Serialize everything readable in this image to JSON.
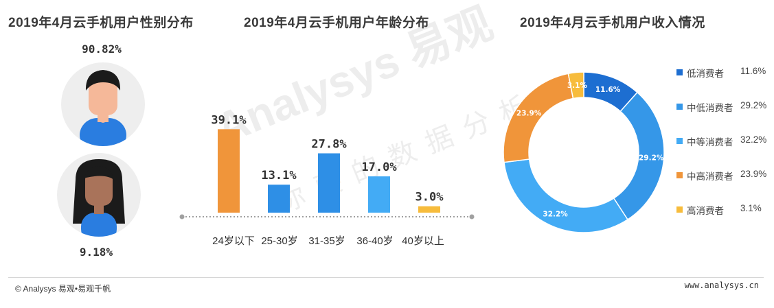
{
  "watermark": {
    "brand": "Analysys 易观",
    "slogan": "你要的数据分析"
  },
  "gender": {
    "title": "2019年4月云手机用户性别分布",
    "male_pct": "90.82%",
    "female_pct": "9.18%"
  },
  "age": {
    "title": "2019年4月云手机用户年龄分布"
  },
  "income": {
    "title": "2019年4月云手机用户收入情况"
  },
  "footer": {
    "copyright": "© Analysys 易观•易观千帆",
    "url": "www.analysys.cn"
  },
  "colors": {
    "orange": "#f0953a",
    "blue": "#2e8fe6",
    "dark_blue": "#1d6ed1",
    "mid_blue": "#3597e8",
    "light_blue": "#43abf5",
    "yellow": "#f7bc3c"
  },
  "chart_data": [
    {
      "type": "bar",
      "title": "2019年4月云手机用户年龄分布",
      "categories": [
        "24岁以下",
        "25-30岁",
        "31-35岁",
        "36-40岁",
        "40岁以上"
      ],
      "values": [
        39.1,
        13.1,
        27.8,
        17.0,
        3.0
      ],
      "labels": [
        "39.1%",
        "13.1%",
        "27.8%",
        "17.0%",
        "3.0%"
      ],
      "colors": [
        "#f0953a",
        "#2e8fe6",
        "#2e8fe6",
        "#43abf5",
        "#f7bc3c"
      ],
      "ylim": [
        0,
        45
      ],
      "xlabel": "",
      "ylabel": ""
    },
    {
      "type": "pie",
      "style": "donut",
      "title": "2019年4月云手机用户收入情况",
      "categories": [
        "低消费者",
        "中低消费者",
        "中等消费者",
        "中高消费者",
        "高消费者"
      ],
      "values": [
        11.6,
        29.2,
        32.2,
        23.9,
        3.1
      ],
      "labels": [
        "11.6%",
        "29.2%",
        "32.2%",
        "23.9%",
        "3.1%"
      ],
      "colors": [
        "#1d6ed1",
        "#3597e8",
        "#43abf5",
        "#f0953a",
        "#f7bc3c"
      ],
      "legend": "right"
    }
  ]
}
